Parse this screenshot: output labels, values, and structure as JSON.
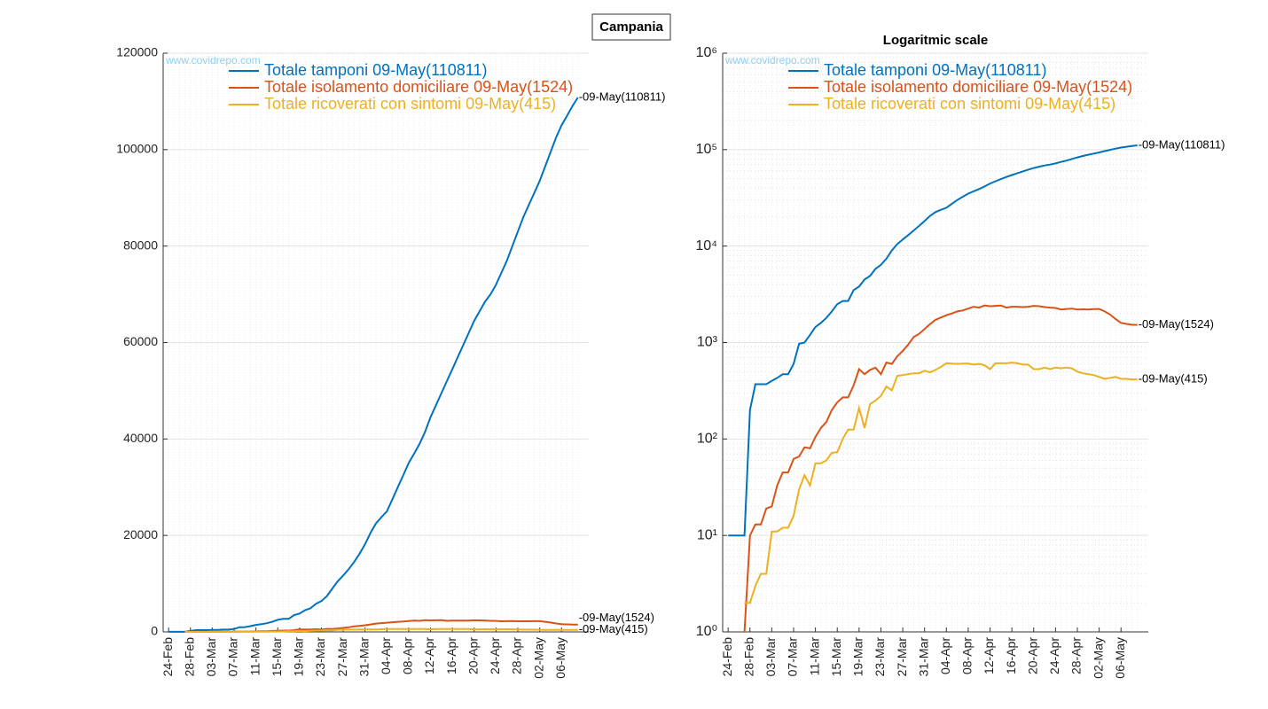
{
  "figure_title": "Campania",
  "chart_data": [
    {
      "type": "line",
      "log_scale": false,
      "grid": true,
      "watermark": "www.covidrepo.com",
      "x": [
        "24-Feb",
        "25-Feb",
        "26-Feb",
        "27-Feb",
        "28-Feb",
        "29-Feb",
        "01-Mar",
        "02-Mar",
        "03-Mar",
        "04-Mar",
        "05-Mar",
        "06-Mar",
        "07-Mar",
        "08-Mar",
        "09-Mar",
        "10-Mar",
        "11-Mar",
        "12-Mar",
        "13-Mar",
        "14-Mar",
        "15-Mar",
        "16-Mar",
        "17-Mar",
        "18-Mar",
        "19-Mar",
        "20-Mar",
        "21-Mar",
        "22-Mar",
        "23-Mar",
        "24-Mar",
        "25-Mar",
        "26-Mar",
        "27-Mar",
        "28-Mar",
        "29-Mar",
        "30-Mar",
        "31-Mar",
        "01-Apr",
        "02-Apr",
        "03-Apr",
        "04-Apr",
        "05-Apr",
        "06-Apr",
        "07-Apr",
        "08-Apr",
        "09-Apr",
        "10-Apr",
        "11-Apr",
        "12-Apr",
        "13-Apr",
        "14-Apr",
        "15-Apr",
        "16-Apr",
        "17-Apr",
        "18-Apr",
        "19-Apr",
        "20-Apr",
        "21-Apr",
        "22-Apr",
        "23-Apr",
        "24-Apr",
        "25-Apr",
        "26-Apr",
        "27-Apr",
        "28-Apr",
        "29-Apr",
        "30-Apr",
        "01-May",
        "02-May",
        "03-May",
        "04-May",
        "05-May",
        "06-May",
        "07-May",
        "08-May",
        "09-May"
      ],
      "xticks": [
        "24-Feb",
        "28-Feb",
        "03-Mar",
        "07-Mar",
        "11-Mar",
        "15-Mar",
        "19-Mar",
        "23-Mar",
        "27-Mar",
        "31-Mar",
        "04-Apr",
        "08-Apr",
        "12-Apr",
        "16-Apr",
        "20-Apr",
        "24-Apr",
        "28-Apr",
        "02-May",
        "06-May"
      ],
      "ylim": [
        0,
        120000
      ],
      "yticks": [
        0,
        20000,
        40000,
        60000,
        80000,
        100000,
        120000
      ],
      "series": [
        {
          "name": "Totale tamponi 09-May(110811)",
          "color": "#0072BD",
          "values": [
            10,
            10,
            10,
            10,
            200,
            370,
            370,
            370,
            400,
            430,
            470,
            470,
            600,
            970,
            1000,
            1200,
            1450,
            1600,
            1800,
            2100,
            2500,
            2700,
            2700,
            3500,
            3800,
            4500,
            4900,
            5800,
            6400,
            7400,
            9000,
            10500,
            11700,
            13000,
            14500,
            16200,
            18200,
            20500,
            22500,
            23800,
            25000,
            27500,
            30000,
            32500,
            35000,
            37000,
            39000,
            41500,
            44500,
            47000,
            49500,
            52000,
            54500,
            57000,
            59500,
            62000,
            64500,
            66500,
            68500,
            70000,
            72000,
            74500,
            77000,
            80000,
            83000,
            86000,
            88500,
            91000,
            93500,
            96500,
            99500,
            102500,
            105000,
            107000,
            109000,
            110811
          ]
        },
        {
          "name": "Totale isolamento domiciliare 09-May(1524)",
          "color": "#D95319",
          "values": [
            null,
            null,
            null,
            1,
            10,
            13,
            13,
            19,
            20,
            33,
            45,
            45,
            62,
            66,
            82,
            80,
            105,
            130,
            150,
            200,
            240,
            270,
            270,
            360,
            530,
            470,
            520,
            550,
            470,
            620,
            600,
            720,
            820,
            950,
            1140,
            1230,
            1380,
            1550,
            1720,
            1820,
            1920,
            2000,
            2100,
            2150,
            2250,
            2350,
            2300,
            2420,
            2380,
            2400,
            2420,
            2300,
            2350,
            2350,
            2330,
            2350,
            2400,
            2380,
            2330,
            2300,
            2280,
            2200,
            2230,
            2250,
            2200,
            2210,
            2200,
            2220,
            2230,
            2100,
            1950,
            1750,
            1600,
            1560,
            1530,
            1524
          ]
        },
        {
          "name": "Totale ricoverati con sintomi 09-May(415)",
          "color": "#EDB120",
          "values": [
            null,
            null,
            null,
            2,
            2,
            3,
            4,
            4,
            11,
            11,
            12,
            12,
            16,
            30,
            42,
            33,
            56,
            56,
            60,
            72,
            73,
            100,
            125,
            125,
            210,
            130,
            230,
            250,
            280,
            350,
            320,
            450,
            460,
            470,
            480,
            480,
            510,
            490,
            520,
            560,
            610,
            605,
            600,
            605,
            605,
            590,
            600,
            580,
            530,
            610,
            610,
            610,
            620,
            610,
            590,
            590,
            530,
            530,
            550,
            530,
            550,
            540,
            550,
            540,
            500,
            480,
            470,
            460,
            440,
            420,
            430,
            440,
            420,
            420,
            415,
            415
          ]
        }
      ],
      "annotations": [
        "-09-May(110811)",
        "-09-May(1524)",
        "-09-May(415)"
      ]
    },
    {
      "type": "line",
      "log_scale": true,
      "grid": true,
      "title": "Logaritmic scale",
      "watermark": "www.covidrepo.com",
      "x": [
        "24-Feb",
        "25-Feb",
        "26-Feb",
        "27-Feb",
        "28-Feb",
        "29-Feb",
        "01-Mar",
        "02-Mar",
        "03-Mar",
        "04-Mar",
        "05-Mar",
        "06-Mar",
        "07-Mar",
        "08-Mar",
        "09-Mar",
        "10-Mar",
        "11-Mar",
        "12-Mar",
        "13-Mar",
        "14-Mar",
        "15-Mar",
        "16-Mar",
        "17-Mar",
        "18-Mar",
        "19-Mar",
        "20-Mar",
        "21-Mar",
        "22-Mar",
        "23-Mar",
        "24-Mar",
        "25-Mar",
        "26-Mar",
        "27-Mar",
        "28-Mar",
        "29-Mar",
        "30-Mar",
        "31-Mar",
        "01-Apr",
        "02-Apr",
        "03-Apr",
        "04-Apr",
        "05-Apr",
        "06-Apr",
        "07-Apr",
        "08-Apr",
        "09-Apr",
        "10-Apr",
        "11-Apr",
        "12-Apr",
        "13-Apr",
        "14-Apr",
        "15-Apr",
        "16-Apr",
        "17-Apr",
        "18-Apr",
        "19-Apr",
        "20-Apr",
        "21-Apr",
        "22-Apr",
        "23-Apr",
        "24-Apr",
        "25-Apr",
        "26-Apr",
        "27-Apr",
        "28-Apr",
        "29-Apr",
        "30-Apr",
        "01-May",
        "02-May",
        "03-May",
        "04-May",
        "05-May",
        "06-May",
        "07-May",
        "08-May",
        "09-May"
      ],
      "xticks": [
        "24-Feb",
        "28-Feb",
        "03-Mar",
        "07-Mar",
        "11-Mar",
        "15-Mar",
        "19-Mar",
        "23-Mar",
        "27-Mar",
        "31-Mar",
        "04-Apr",
        "08-Apr",
        "12-Apr",
        "16-Apr",
        "20-Apr",
        "24-Apr",
        "28-Apr",
        "02-May",
        "06-May"
      ],
      "ylim": [
        1,
        1000000
      ],
      "yticks": [
        {
          "value": 1,
          "label": "10⁰"
        },
        {
          "value": 10,
          "label": "10¹"
        },
        {
          "value": 100,
          "label": "10²"
        },
        {
          "value": 1000,
          "label": "10³"
        },
        {
          "value": 10000,
          "label": "10⁴"
        },
        {
          "value": 100000,
          "label": "10⁵"
        },
        {
          "value": 1000000,
          "label": "10⁶"
        }
      ],
      "series": [
        {
          "name": "Totale tamponi 09-May(110811)",
          "color": "#0072BD",
          "values": [
            10,
            10,
            10,
            10,
            200,
            370,
            370,
            370,
            400,
            430,
            470,
            470,
            600,
            970,
            1000,
            1200,
            1450,
            1600,
            1800,
            2100,
            2500,
            2700,
            2700,
            3500,
            3800,
            4500,
            4900,
            5800,
            6400,
            7400,
            9000,
            10500,
            11700,
            13000,
            14500,
            16200,
            18200,
            20500,
            22500,
            23800,
            25000,
            27500,
            30000,
            32500,
            35000,
            37000,
            39000,
            41500,
            44500,
            47000,
            49500,
            52000,
            54500,
            57000,
            59500,
            62000,
            64500,
            66500,
            68500,
            70000,
            72000,
            74500,
            77000,
            80000,
            83000,
            86000,
            88500,
            91000,
            93500,
            96500,
            99500,
            102500,
            105000,
            107000,
            109000,
            110811
          ]
        },
        {
          "name": "Totale isolamento domiciliare 09-May(1524)",
          "color": "#D95319",
          "values": [
            null,
            null,
            null,
            1,
            10,
            13,
            13,
            19,
            20,
            33,
            45,
            45,
            62,
            66,
            82,
            80,
            105,
            130,
            150,
            200,
            240,
            270,
            270,
            360,
            530,
            470,
            520,
            550,
            470,
            620,
            600,
            720,
            820,
            950,
            1140,
            1230,
            1380,
            1550,
            1720,
            1820,
            1920,
            2000,
            2100,
            2150,
            2250,
            2350,
            2300,
            2420,
            2380,
            2400,
            2420,
            2300,
            2350,
            2350,
            2330,
            2350,
            2400,
            2380,
            2330,
            2300,
            2280,
            2200,
            2230,
            2250,
            2200,
            2210,
            2200,
            2220,
            2230,
            2100,
            1950,
            1750,
            1600,
            1560,
            1530,
            1524
          ]
        },
        {
          "name": "Totale ricoverati con sintomi 09-May(415)",
          "color": "#EDB120",
          "values": [
            null,
            null,
            null,
            2,
            2,
            3,
            4,
            4,
            11,
            11,
            12,
            12,
            16,
            30,
            42,
            33,
            56,
            56,
            60,
            72,
            73,
            100,
            125,
            125,
            210,
            130,
            230,
            250,
            280,
            350,
            320,
            450,
            460,
            470,
            480,
            480,
            510,
            490,
            520,
            560,
            610,
            605,
            600,
            605,
            605,
            590,
            600,
            580,
            530,
            610,
            610,
            610,
            620,
            610,
            590,
            590,
            530,
            530,
            550,
            530,
            550,
            540,
            550,
            540,
            500,
            480,
            470,
            460,
            440,
            420,
            430,
            440,
            420,
            420,
            415,
            415
          ]
        }
      ],
      "annotations": [
        "-09-May(110811)",
        "-09-May(1524)",
        "-09-May(415)"
      ]
    }
  ]
}
